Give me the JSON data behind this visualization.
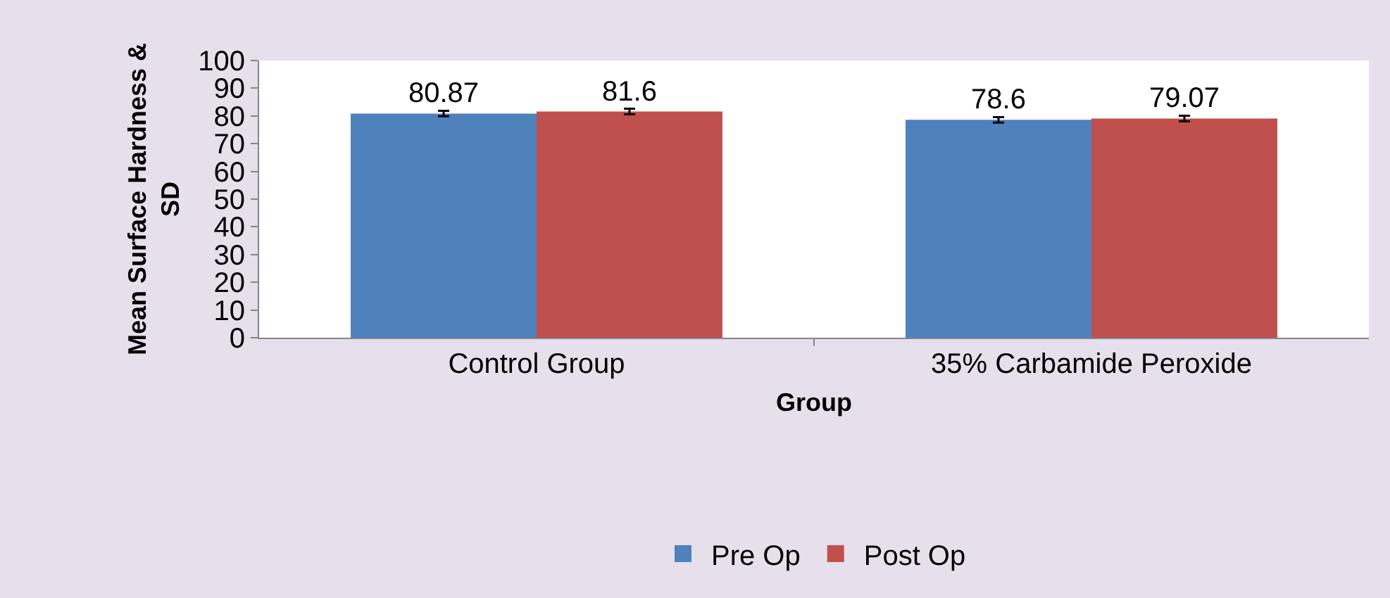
{
  "chart_data": {
    "type": "bar",
    "xlabel": "Group",
    "ylabel": "Mean Surface Hardness & SD",
    "categories": [
      "Control Group",
      "35% Carbamide Peroxide"
    ],
    "series": [
      {
        "name": "Pre Op",
        "color": "#4f81bd",
        "values": [
          80.87,
          78.6
        ],
        "errors": [
          1,
          1
        ]
      },
      {
        "name": "Post Op",
        "color": "#c0504d",
        "values": [
          81.6,
          79.07
        ],
        "errors": [
          1,
          1
        ]
      }
    ],
    "ylim": [
      0,
      100
    ],
    "yticks": [
      0,
      10,
      20,
      30,
      40,
      50,
      60,
      70,
      80,
      90,
      100
    ],
    "data_labels": true,
    "legend": "bottom"
  }
}
